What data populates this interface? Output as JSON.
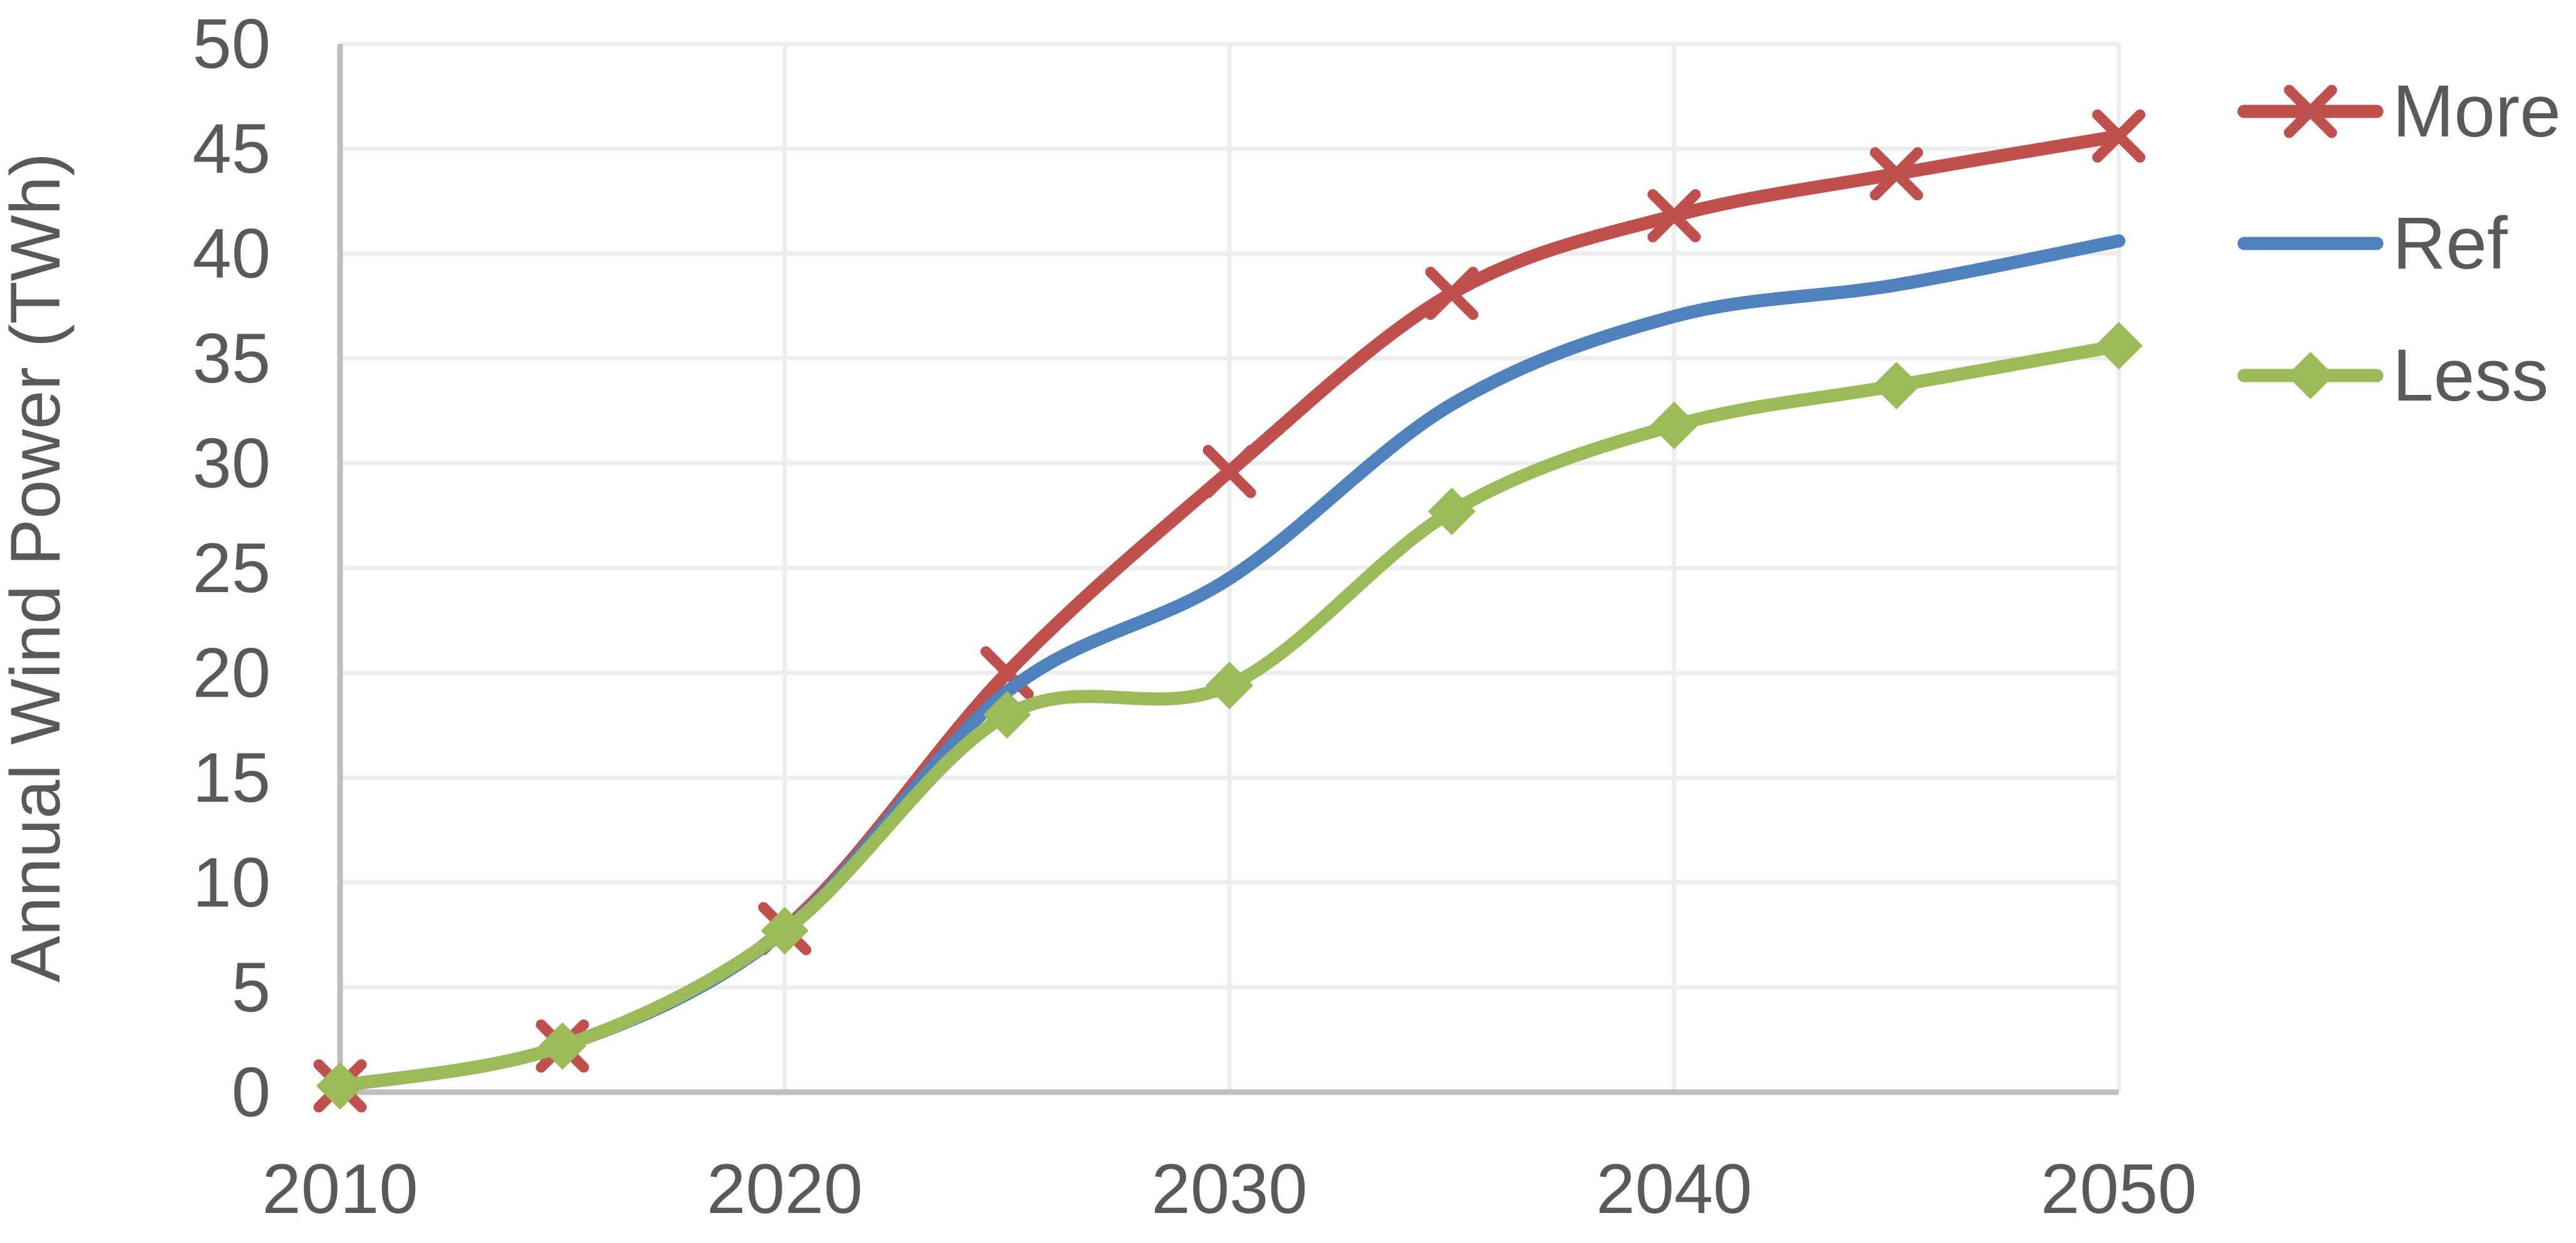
{
  "chart_data": {
    "type": "line",
    "title": "",
    "xlabel": "",
    "ylabel": "Annual Wind Power (TWh)",
    "x": [
      2010,
      2015,
      2020,
      2025,
      2030,
      2035,
      2040,
      2045,
      2050
    ],
    "series": [
      {
        "name": "More",
        "color": "#C0504D",
        "marker": "x",
        "values": [
          0.3,
          2.2,
          7.8,
          20.0,
          29.6,
          38.1,
          41.8,
          43.8,
          45.6
        ]
      },
      {
        "name": "Ref",
        "color": "#4F81BD",
        "marker": "none",
        "values": [
          0.3,
          2.2,
          7.7,
          19.1,
          24.5,
          32.8,
          37.0,
          38.5,
          40.6
        ]
      },
      {
        "name": "Less",
        "color": "#9BBB59",
        "marker": "diamond",
        "values": [
          0.3,
          2.2,
          7.7,
          18.0,
          19.4,
          27.7,
          31.8,
          33.7,
          35.6
        ]
      }
    ],
    "ylim": [
      0,
      50
    ],
    "yticks": [
      0,
      5,
      10,
      15,
      20,
      25,
      30,
      35,
      40,
      45,
      50
    ],
    "xticks": [
      2010,
      2020,
      2030,
      2040,
      2050
    ],
    "grid": true,
    "legend_position": "right",
    "smooth_lines": true
  },
  "styles": {
    "text_color": "#595959",
    "gridline_color": "#EDEDED",
    "axis_color": "#BFBFBF",
    "background": "#FFFFFF",
    "series_colors": {
      "More": "#C0504D",
      "Ref": "#4F81BD",
      "Less": "#9BBB59"
    }
  }
}
